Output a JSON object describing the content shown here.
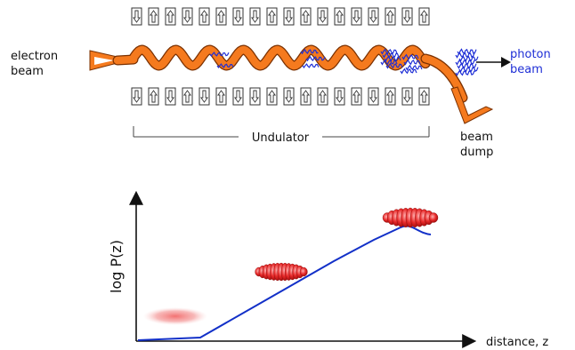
{
  "labels": {
    "electron_beam": [
      "electron",
      "beam"
    ],
    "photon_beam": [
      "photon",
      "beam"
    ],
    "undulator": "Undulator",
    "beam_dump": [
      "beam",
      "dump"
    ]
  },
  "plot": {
    "ylabel": "log P(z)",
    "xlabel": "distance, z"
  },
  "magnets": {
    "top_row": [
      "down",
      "up",
      "up",
      "down",
      "up",
      "up",
      "down",
      "down",
      "up",
      "down",
      "up",
      "down",
      "up",
      "down",
      "down",
      "up",
      "down",
      "up"
    ],
    "bottom_row": [
      "down",
      "up",
      "down",
      "up",
      "down",
      "up",
      "down",
      "down",
      "up",
      "down",
      "up",
      "up",
      "down",
      "up",
      "down",
      "up",
      "down",
      "up"
    ]
  },
  "colors": {
    "electron": "#f57a1e",
    "electron_edge": "#7a3000",
    "photon": "#1f2fd6",
    "curve": "#1230c8",
    "bunch": "#e8343a"
  }
}
